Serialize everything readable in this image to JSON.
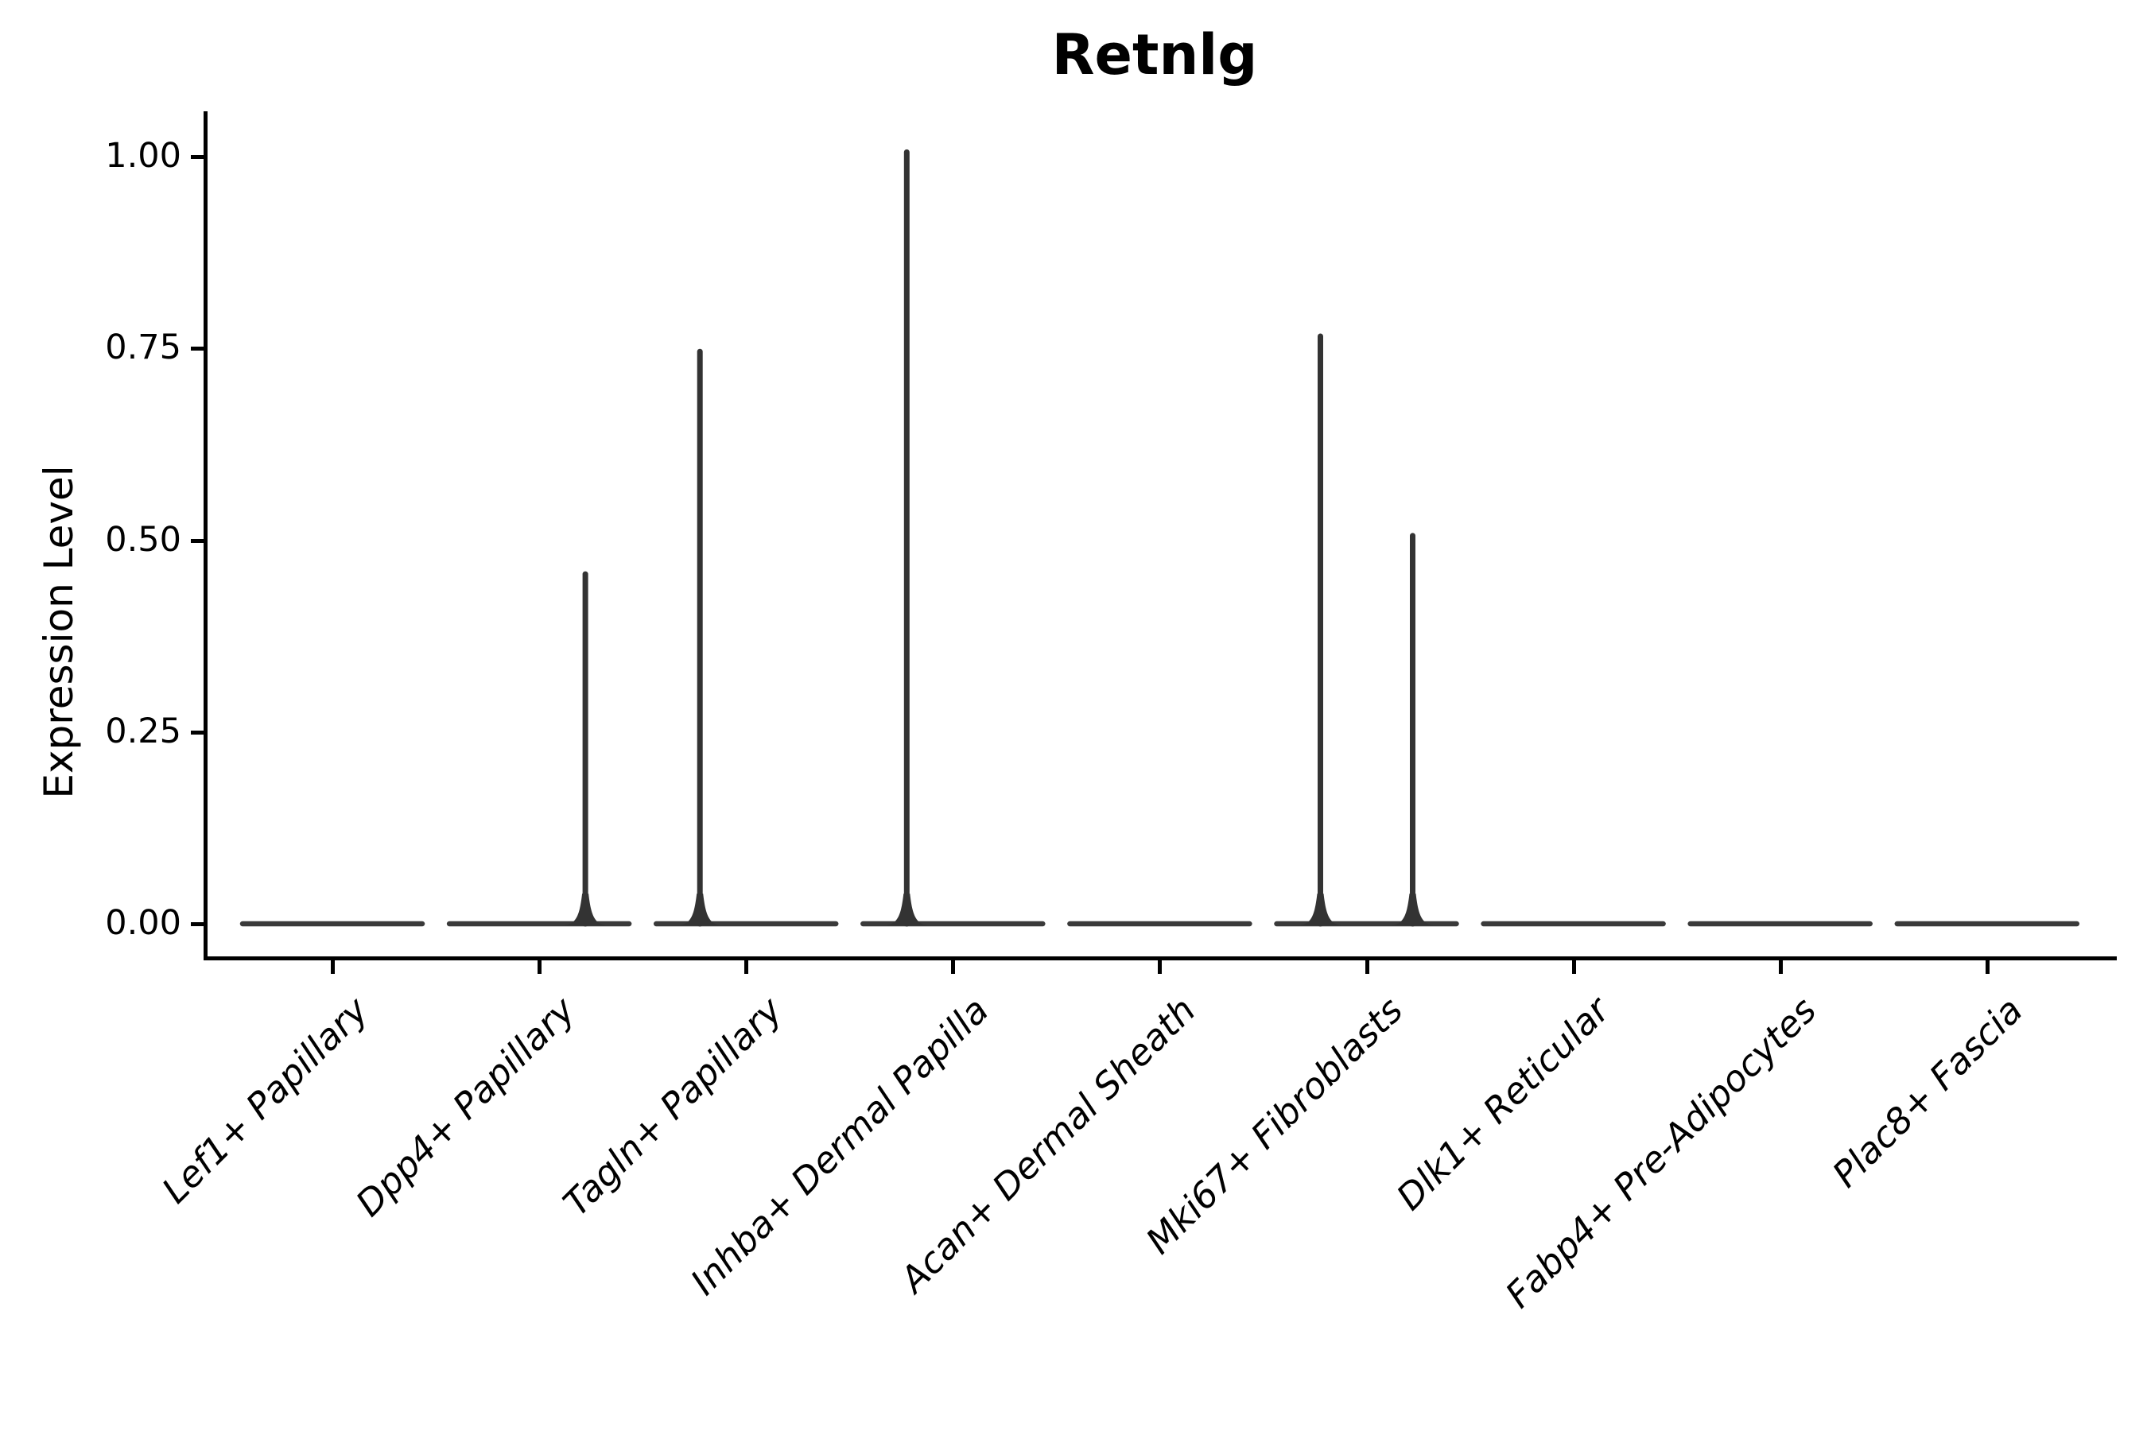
{
  "figure": {
    "title": "Retnlg"
  },
  "y_axis": {
    "label": "Expression Level",
    "tick_labels": [
      "1.00",
      "0.75",
      "0.50",
      "0.25",
      "0.00"
    ],
    "tick_values": [
      1.0,
      0.75,
      0.5,
      0.25,
      0.0
    ]
  },
  "x_axis": {
    "categories": [
      "Lef1+ Papillary",
      "Dpp4+ Papillary",
      "Tagln+ Papillary",
      "Inhba+ Dermal Papilla",
      "Acan+ Dermal Sheath",
      "Mki67+ Fibroblasts",
      "Dlk1+ Reticular",
      "Fabp4+ Pre-Adipocytes",
      "Plac8+ Fascia"
    ]
  },
  "chart_data": {
    "type": "violin",
    "title": "Retnlg",
    "xlabel": "",
    "ylabel": "Expression Level",
    "categories": [
      "Lef1+ Papillary",
      "Dpp4+ Papillary",
      "Tagln+ Papillary",
      "Inhba+ Dermal Papilla",
      "Acan+ Dermal Sheath",
      "Mki67+ Fibroblasts",
      "Dlk1+ Reticular",
      "Fabp4+ Pre-Adipocytes",
      "Plac8+ Fascia"
    ],
    "yticks": [
      0.0,
      0.25,
      0.5,
      0.75,
      1.0
    ],
    "ylim": [
      -0.04,
      1.06
    ],
    "grid": false,
    "legend_position": "none",
    "mark_color": "#333333",
    "violins": [
      {
        "category": "Lef1+ Papillary",
        "base_value": 0.0,
        "spikes": []
      },
      {
        "category": "Dpp4+ Papillary",
        "base_value": 0.0,
        "spikes": [
          {
            "offset": "right",
            "max": 0.46
          }
        ]
      },
      {
        "category": "Tagln+ Papillary",
        "base_value": 0.0,
        "spikes": [
          {
            "offset": "left",
            "max": 0.75
          }
        ]
      },
      {
        "category": "Inhba+ Dermal Papilla",
        "base_value": 0.0,
        "spikes": [
          {
            "offset": "left",
            "max": 1.01
          }
        ]
      },
      {
        "category": "Acan+ Dermal Sheath",
        "base_value": 0.0,
        "spikes": []
      },
      {
        "category": "Mki67+ Fibroblasts",
        "base_value": 0.0,
        "spikes": [
          {
            "offset": "left",
            "max": 0.77
          },
          {
            "offset": "right",
            "max": 0.51
          }
        ]
      },
      {
        "category": "Dlk1+ Reticular",
        "base_value": 0.0,
        "spikes": []
      },
      {
        "category": "Fabp4+ Pre-Adipocytes",
        "base_value": 0.0,
        "spikes": []
      },
      {
        "category": "Plac8+ Fascia",
        "base_value": 0.0,
        "spikes": []
      }
    ]
  }
}
